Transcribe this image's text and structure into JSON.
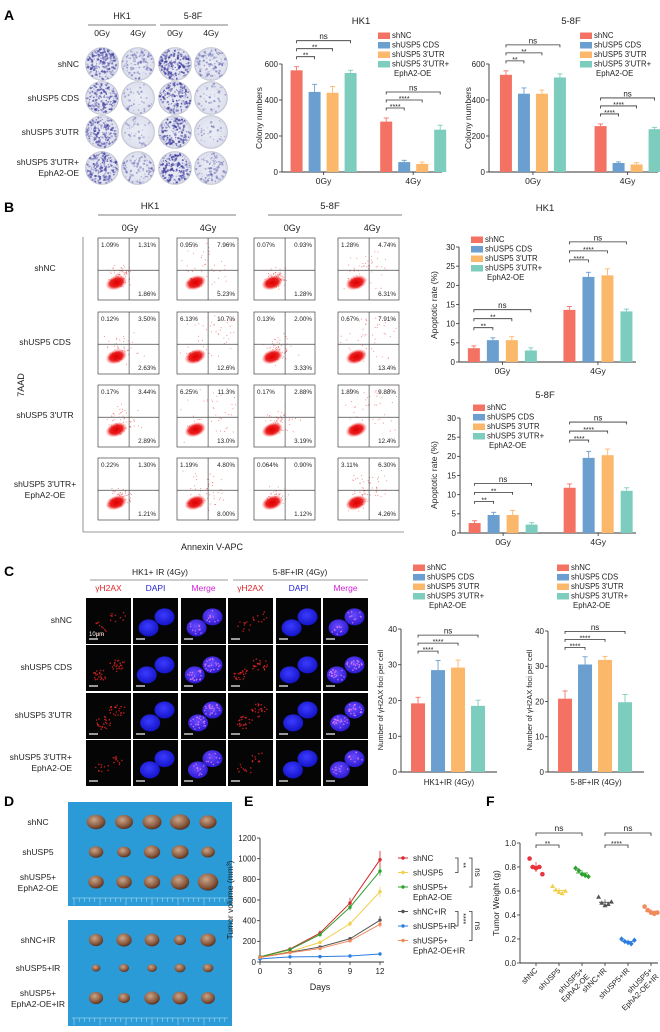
{
  "panel_labels": [
    "A",
    "B",
    "C",
    "D",
    "E",
    "F"
  ],
  "groups": [
    {
      "lines": [
        "shNC"
      ],
      "color": "#f47264"
    },
    {
      "lines": [
        "shUSP5 CDS"
      ],
      "color": "#6a9fcf"
    },
    {
      "lines": [
        "shUSP5 3'UTR"
      ],
      "color": "#fbb86a"
    },
    {
      "lines": [
        "shUSP5 3'UTR+",
        "EphA2-OE"
      ],
      "color": "#7ccdbe"
    }
  ],
  "panel_a": {
    "cell_lines": [
      "HK1",
      "5-8F"
    ],
    "doses": [
      "0Gy",
      "4Gy",
      "0Gy",
      "4Gy"
    ],
    "row_labels": [
      [
        "shNC"
      ],
      [
        "shUSP5 CDS"
      ],
      [
        "shUSP5 3'UTR"
      ],
      [
        "shUSP5 3'UTR+",
        "EphA2-OE"
      ]
    ]
  },
  "panel_b": {
    "cell_lines": [
      "HK1",
      "5-8F"
    ],
    "doses": [
      "0Gy",
      "4Gy",
      "0Gy",
      "4Gy"
    ],
    "row_labels": [
      [
        "shNC"
      ],
      [
        "shUSP5 CDS"
      ],
      [
        "shUSP5 3'UTR"
      ],
      [
        "shUSP5 3'UTR+",
        "EphA2-OE"
      ]
    ],
    "y_axis_label": "7AAD",
    "x_axis_label": "Annexin V-APC",
    "quadrants_note": "columns x rows; each [upper-left, upper-right, lower-right]",
    "quadrants": [
      [
        [
          "1.09%",
          "1.31%",
          "1.86%"
        ],
        [
          "0.12%",
          "3.50%",
          "2.63%"
        ],
        [
          "0.17%",
          "3.44%",
          "2.89%"
        ],
        [
          "0.22%",
          "1.30%",
          "1.21%"
        ]
      ],
      [
        [
          "0.95%",
          "7.96%",
          "5.23%"
        ],
        [
          "6.13%",
          "10.7%",
          "12.6%"
        ],
        [
          "6.25%",
          "11.3%",
          "13.0%"
        ],
        [
          "1.19%",
          "4.80%",
          "8.00%"
        ]
      ],
      [
        [
          "0.07%",
          "0.93%",
          "1.28%"
        ],
        [
          "0.13%",
          "2.00%",
          "3.33%"
        ],
        [
          "0.17%",
          "2.88%",
          "3.19%"
        ],
        [
          "0.064%",
          "0.90%",
          "1.12%"
        ]
      ],
      [
        [
          "1.28%",
          "4.74%",
          "6.31%"
        ],
        [
          "0.67%",
          "7.91%",
          "13.4%"
        ],
        [
          "1.89%",
          "9.88%",
          "12.4%"
        ],
        [
          "3.11%",
          "6.30%",
          "4.26%"
        ]
      ]
    ]
  },
  "panel_c": {
    "headers": [
      "HK1+ IR (4Gy)",
      "5-8F+IR (4Gy)"
    ],
    "channels": [
      {
        "label": "γH2AX",
        "color": "#e0242a"
      },
      {
        "label": "DAPI",
        "color": "#2323d6"
      },
      {
        "label": "Merge",
        "color": "#d020d8"
      }
    ],
    "row_labels": [
      [
        "shNC"
      ],
      [
        "shUSP5 CDS"
      ],
      [
        "shUSP5 3'UTR"
      ],
      [
        "shUSP5 3'UTR+",
        "EphA2-OE"
      ]
    ],
    "scale_bar": "10μm"
  },
  "panel_d": {
    "row_labels": [
      [
        "shNC"
      ],
      [
        "shUSP5"
      ],
      [
        "shUSP5+",
        "EphA2-OE"
      ],
      [
        "shNC+IR"
      ],
      [
        "shUSP5+IR"
      ],
      [
        "shUSP5+",
        "EphA2-OE+IR"
      ]
    ]
  },
  "chart_data": [
    {
      "id": "a-hk1",
      "type": "bar",
      "title": "HK1",
      "ylabel": "Colony numbers",
      "xlabel": "",
      "categories": [
        "0Gy",
        "4Gy"
      ],
      "ylim": [
        0,
        600
      ],
      "yticks": [
        0,
        200,
        400,
        600
      ],
      "series": [
        {
          "name": "shNC",
          "values": [
            565,
            280
          ],
          "errors": [
            20,
            20
          ]
        },
        {
          "name": "shUSP5 CDS",
          "values": [
            445,
            55
          ],
          "errors": [
            42,
            10
          ]
        },
        {
          "name": "shUSP5 3'UTR",
          "values": [
            440,
            45
          ],
          "errors": [
            35,
            10
          ]
        },
        {
          "name": "shUSP5 3'UTR+ EphA2-OE",
          "values": [
            550,
            235
          ],
          "errors": [
            15,
            25
          ]
        }
      ],
      "significance": [
        {
          "category": 0,
          "to": 1,
          "level": 0,
          "label": "**"
        },
        {
          "category": 0,
          "to": 2,
          "level": 1,
          "label": "**"
        },
        {
          "category": 0,
          "to": 3,
          "level": 2,
          "label": "ns"
        },
        {
          "category": 1,
          "to": 1,
          "level": 0,
          "label": "****"
        },
        {
          "category": 1,
          "to": 2,
          "level": 1,
          "label": "****"
        },
        {
          "category": 1,
          "to": 3,
          "level": 2,
          "label": "ns"
        }
      ],
      "legend": "top-right"
    },
    {
      "id": "a-58f",
      "type": "bar",
      "title": "5-8F",
      "ylabel": "Colony numbers",
      "xlabel": "",
      "categories": [
        "0Gy",
        "4Gy"
      ],
      "ylim": [
        0,
        600
      ],
      "yticks": [
        0,
        200,
        400,
        600
      ],
      "series": [
        {
          "name": "shNC",
          "values": [
            540,
            255
          ],
          "errors": [
            22,
            12
          ]
        },
        {
          "name": "shUSP5 CDS",
          "values": [
            435,
            50
          ],
          "errors": [
            32,
            6
          ]
        },
        {
          "name": "shUSP5 3'UTR",
          "values": [
            435,
            42
          ],
          "errors": [
            20,
            10
          ]
        },
        {
          "name": "shUSP5 3'UTR+ EphA2-OE",
          "values": [
            525,
            238
          ],
          "errors": [
            20,
            10
          ]
        }
      ],
      "significance": [
        {
          "category": 0,
          "to": 1,
          "level": 0,
          "label": "**"
        },
        {
          "category": 0,
          "to": 2,
          "level": 1,
          "label": "**"
        },
        {
          "category": 0,
          "to": 3,
          "level": 2,
          "label": "ns"
        },
        {
          "category": 1,
          "to": 1,
          "level": 0,
          "label": "****"
        },
        {
          "category": 1,
          "to": 2,
          "level": 1,
          "label": "****"
        },
        {
          "category": 1,
          "to": 3,
          "level": 2,
          "label": "ns"
        }
      ],
      "legend": "top-right"
    },
    {
      "id": "b-hk1",
      "type": "bar",
      "title": "HK1",
      "ylabel": "Apoptotic rate (%)",
      "xlabel": "",
      "categories": [
        "0Gy",
        "4Gy"
      ],
      "ylim": [
        0,
        30
      ],
      "yticks": [
        0,
        5,
        10,
        15,
        20,
        25,
        30
      ],
      "series": [
        {
          "name": "shNC",
          "values": [
            3.6,
            13.6
          ],
          "errors": [
            0.6,
            0.9
          ]
        },
        {
          "name": "shUSP5 CDS",
          "values": [
            5.7,
            22.2
          ],
          "errors": [
            0.6,
            1.2
          ]
        },
        {
          "name": "shUSP5 3'UTR",
          "values": [
            5.7,
            22.6
          ],
          "errors": [
            0.9,
            1.7
          ]
        },
        {
          "name": "shUSP5 3'UTR+ EphA2-OE",
          "values": [
            3.0,
            13.2
          ],
          "errors": [
            0.7,
            0.6
          ]
        }
      ],
      "significance": [
        {
          "category": 0,
          "to": 1,
          "level": 0,
          "label": "**"
        },
        {
          "category": 0,
          "to": 2,
          "level": 1,
          "label": "**"
        },
        {
          "category": 0,
          "to": 3,
          "level": 2,
          "label": "ns"
        },
        {
          "category": 1,
          "to": 1,
          "level": 0,
          "label": "****"
        },
        {
          "category": 1,
          "to": 2,
          "level": 1,
          "label": "****"
        },
        {
          "category": 1,
          "to": 3,
          "level": 2,
          "label": "ns"
        }
      ],
      "legend": "top-left"
    },
    {
      "id": "b-58f",
      "type": "bar",
      "title": "5-8F",
      "ylabel": "Apoptotic rate (%)",
      "xlabel": "",
      "categories": [
        "0Gy",
        "4Gy"
      ],
      "ylim": [
        0,
        30
      ],
      "yticks": [
        0,
        5,
        10,
        15,
        20,
        25,
        30
      ],
      "series": [
        {
          "name": "shNC",
          "values": [
            2.6,
            11.8
          ],
          "errors": [
            0.6,
            1.0
          ]
        },
        {
          "name": "shUSP5 CDS",
          "values": [
            4.7,
            19.6
          ],
          "errors": [
            0.7,
            1.7
          ]
        },
        {
          "name": "shUSP5 3'UTR",
          "values": [
            4.7,
            20.3
          ],
          "errors": [
            1.2,
            1.6
          ]
        },
        {
          "name": "shUSP5 3'UTR+ EphA2-OE",
          "values": [
            2.2,
            11.0
          ],
          "errors": [
            0.5,
            0.8
          ]
        }
      ],
      "significance": [
        {
          "category": 0,
          "to": 1,
          "level": 0,
          "label": "**"
        },
        {
          "category": 0,
          "to": 2,
          "level": 1,
          "label": "**"
        },
        {
          "category": 0,
          "to": 3,
          "level": 2,
          "label": "ns"
        },
        {
          "category": 1,
          "to": 1,
          "level": 0,
          "label": "****"
        },
        {
          "category": 1,
          "to": 2,
          "level": 1,
          "label": "****"
        },
        {
          "category": 1,
          "to": 3,
          "level": 2,
          "label": "ns"
        }
      ],
      "legend": "top-left"
    },
    {
      "id": "c-hk1",
      "type": "bar",
      "title": "",
      "ylabel": "Number of  γH2AX foci per cell",
      "xlabel": "HK1+IR (4Gy)",
      "categories": [
        ""
      ],
      "ylim": [
        0,
        40
      ],
      "yticks": [
        0,
        10,
        20,
        30,
        40
      ],
      "series": [
        {
          "name": "shNC",
          "values": [
            19.2
          ],
          "errors": [
            1.7
          ]
        },
        {
          "name": "shUSP5 CDS",
          "values": [
            28.5
          ],
          "errors": [
            2.7
          ]
        },
        {
          "name": "shUSP5 3'UTR",
          "values": [
            29.2
          ],
          "errors": [
            2.1
          ]
        },
        {
          "name": "shUSP5 3'UTR+ EphA2-OE",
          "values": [
            18.5
          ],
          "errors": [
            1.6
          ]
        }
      ],
      "significance": [
        {
          "category": 0,
          "to": 1,
          "level": 0,
          "label": "****"
        },
        {
          "category": 0,
          "to": 2,
          "level": 1,
          "label": "****"
        },
        {
          "category": 0,
          "to": 3,
          "level": 2,
          "label": "ns"
        }
      ],
      "legend": "top"
    },
    {
      "id": "c-58f",
      "type": "bar",
      "title": "",
      "ylabel": "Number of  γH2AX foci per cell",
      "xlabel": "5-8F+IR (4Gy)",
      "categories": [
        ""
      ],
      "ylim": [
        0,
        40
      ],
      "yticks": [
        0,
        10,
        20,
        30,
        40
      ],
      "series": [
        {
          "name": "shNC",
          "values": [
            20.8
          ],
          "errors": [
            2.2
          ]
        },
        {
          "name": "shUSP5 CDS",
          "values": [
            30.5
          ],
          "errors": [
            2.2
          ]
        },
        {
          "name": "shUSP5 3'UTR",
          "values": [
            31.8
          ],
          "errors": [
            1.0
          ]
        },
        {
          "name": "shUSP5 3'UTR+ EphA2-OE",
          "values": [
            19.8
          ],
          "errors": [
            2.2
          ]
        }
      ],
      "significance": [
        {
          "category": 0,
          "to": 1,
          "level": 0,
          "label": "****"
        },
        {
          "category": 0,
          "to": 2,
          "level": 1,
          "label": "****"
        },
        {
          "category": 0,
          "to": 3,
          "level": 2,
          "label": "ns"
        }
      ],
      "legend": "top"
    },
    {
      "id": "e",
      "type": "line",
      "title": "",
      "ylabel": "Tumor volume (mm³)",
      "xlabel": "Days",
      "x": [
        0,
        3,
        6,
        9,
        12
      ],
      "xlim": [
        0,
        12
      ],
      "xticks": [
        0,
        3,
        6,
        9,
        12
      ],
      "ylim": [
        0,
        1200
      ],
      "yticks": [
        0,
        200,
        400,
        600,
        800,
        1000,
        1200
      ],
      "series": [
        {
          "lines": [
            "shNC"
          ],
          "color": "#d7262e",
          "values": [
            50,
            125,
            280,
            570,
            990
          ],
          "errors": [
            5,
            10,
            25,
            50,
            85
          ]
        },
        {
          "lines": [
            "shUSP5"
          ],
          "color": "#f2cf4a",
          "values": [
            45,
            100,
            190,
            370,
            680
          ],
          "errors": [
            5,
            8,
            15,
            25,
            50
          ]
        },
        {
          "lines": [
            "shUSP5+",
            "EphA2-OE"
          ],
          "color": "#2ea12e",
          "values": [
            50,
            120,
            265,
            530,
            880
          ],
          "errors": [
            5,
            10,
            20,
            30,
            45
          ]
        },
        {
          "lines": [
            "shNC+IR"
          ],
          "color": "#555555",
          "values": [
            45,
            95,
            145,
            225,
            405
          ],
          "errors": [
            4,
            8,
            12,
            15,
            40
          ]
        },
        {
          "lines": [
            "shUSP5+IR"
          ],
          "color": "#2b7de0",
          "values": [
            30,
            50,
            52,
            58,
            78
          ],
          "errors": [
            3,
            4,
            4,
            5,
            6
          ]
        },
        {
          "lines": [
            "shUSP5+",
            "EphA2-OE+IR"
          ],
          "color": "#f08a5d",
          "values": [
            45,
            90,
            130,
            205,
            365
          ],
          "errors": [
            4,
            6,
            10,
            15,
            30
          ]
        }
      ],
      "brackets": [
        {
          "from": 0,
          "to": 1,
          "label": "**"
        },
        {
          "from": 0,
          "to": 2,
          "label": "ns"
        },
        {
          "from": 3,
          "to": 4,
          "label": "****"
        },
        {
          "from": 3,
          "to": 5,
          "label": "ns"
        }
      ],
      "legend": "right"
    },
    {
      "id": "f",
      "type": "scatter",
      "title": "",
      "ylabel": "Tumor Weight (g)",
      "xlabel": "",
      "categories": [
        "shNC",
        "shUSP5",
        "shUSP5+ EphA2-OE",
        "shNC+IR",
        "shUSP5+IR",
        "shUSP5+ EphA2-OE+IR"
      ],
      "category_lines": [
        [
          "shNC"
        ],
        [
          "shUSP5"
        ],
        [
          "shUSP5+",
          "EphA2-OE"
        ],
        [
          "shNC+IR"
        ],
        [
          "shUSP5+IR"
        ],
        [
          "shUSP5+",
          "EphA2-OE+IR"
        ]
      ],
      "colors": [
        "#e8323c",
        "#f2cf4a",
        "#2ea12e",
        "#555555",
        "#2b7de0",
        "#f08a5d"
      ],
      "markers": [
        "circle",
        "triangle",
        "diamond",
        "triangle",
        "diamond",
        "circle"
      ],
      "ylim": [
        0,
        1.0
      ],
      "yticks": [
        "0.0",
        "0.2",
        "0.4",
        "0.6",
        "0.8",
        "1.0"
      ],
      "points": [
        [
          0.87,
          0.8,
          0.79,
          0.8,
          0.74
        ],
        [
          0.64,
          0.61,
          0.59,
          0.58,
          0.6
        ],
        [
          0.79,
          0.77,
          0.74,
          0.73,
          0.72
        ],
        [
          0.55,
          0.5,
          0.48,
          0.49,
          0.51
        ],
        [
          0.2,
          0.18,
          0.17,
          0.16,
          0.19
        ],
        [
          0.47,
          0.44,
          0.42,
          0.41,
          0.42
        ]
      ],
      "significance": [
        {
          "from": 0,
          "to": 1,
          "level": 0,
          "label": "**"
        },
        {
          "from": 0,
          "to": 2,
          "level": 1,
          "label": "ns"
        },
        {
          "from": 3,
          "to": 4,
          "level": 0,
          "label": "****"
        },
        {
          "from": 3,
          "to": 5,
          "level": 1,
          "label": "ns"
        }
      ]
    }
  ]
}
